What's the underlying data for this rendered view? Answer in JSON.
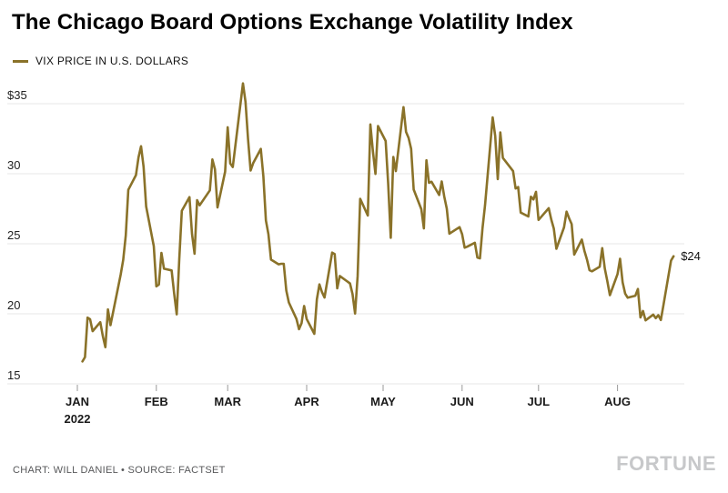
{
  "branding": {
    "logo": "FORTUNE"
  },
  "chart_data": {
    "type": "line",
    "title": "The Chicago Board Options Exchange Volatility Index",
    "legend": "VIX PRICE IN U.S. DOLLARS",
    "credit": "CHART: WILL DANIEL • SOURCE: FACTSET",
    "end_label": "$24",
    "line_color": "#8A7229",
    "grid": true,
    "legend_position": "top-left",
    "ylim": [
      15,
      37
    ],
    "y_ticks": [
      {
        "v": 35,
        "label": "$35"
      },
      {
        "v": 30,
        "label": "30"
      },
      {
        "v": 25,
        "label": "25"
      },
      {
        "v": 20,
        "label": "20"
      },
      {
        "v": 15,
        "label": "15"
      }
    ],
    "x_ticks": [
      {
        "month": 1,
        "label": "JAN",
        "sub": "2022"
      },
      {
        "month": 2,
        "label": "FEB"
      },
      {
        "month": 3,
        "label": "MAR"
      },
      {
        "month": 4,
        "label": "APR"
      },
      {
        "month": 5,
        "label": "MAY"
      },
      {
        "month": 6,
        "label": "JUN"
      },
      {
        "month": 7,
        "label": "JUL"
      },
      {
        "month": 8,
        "label": "AUG"
      }
    ],
    "series": [
      {
        "name": "VIX PRICE IN U.S. DOLLARS",
        "points": [
          [
            "01-03",
            16.6
          ],
          [
            "01-04",
            16.91
          ],
          [
            "01-05",
            19.73
          ],
          [
            "01-06",
            19.61
          ],
          [
            "01-07",
            18.76
          ],
          [
            "01-10",
            19.4
          ],
          [
            "01-11",
            18.41
          ],
          [
            "01-12",
            17.62
          ],
          [
            "01-13",
            20.31
          ],
          [
            "01-14",
            19.19
          ],
          [
            "01-18",
            22.79
          ],
          [
            "01-19",
            23.85
          ],
          [
            "01-20",
            25.59
          ],
          [
            "01-21",
            28.85
          ],
          [
            "01-24",
            29.9
          ],
          [
            "01-25",
            31.16
          ],
          [
            "01-26",
            31.96
          ],
          [
            "01-27",
            30.49
          ],
          [
            "01-28",
            27.66
          ],
          [
            "01-31",
            24.83
          ],
          [
            "02-01",
            21.96
          ],
          [
            "02-02",
            22.09
          ],
          [
            "02-03",
            24.35
          ],
          [
            "02-04",
            23.22
          ],
          [
            "02-07",
            23.1
          ],
          [
            "02-08",
            21.44
          ],
          [
            "02-09",
            19.96
          ],
          [
            "02-10",
            23.91
          ],
          [
            "02-11",
            27.36
          ],
          [
            "02-14",
            28.33
          ],
          [
            "02-15",
            25.7
          ],
          [
            "02-16",
            24.29
          ],
          [
            "02-17",
            28.11
          ],
          [
            "02-18",
            27.75
          ],
          [
            "02-22",
            28.81
          ],
          [
            "02-23",
            31.02
          ],
          [
            "02-24",
            30.32
          ],
          [
            "02-25",
            27.59
          ],
          [
            "02-28",
            30.15
          ],
          [
            "03-01",
            33.32
          ],
          [
            "03-02",
            30.74
          ],
          [
            "03-03",
            30.48
          ],
          [
            "03-04",
            31.98
          ],
          [
            "03-07",
            36.45
          ],
          [
            "03-08",
            35.13
          ],
          [
            "03-09",
            32.45
          ],
          [
            "03-10",
            30.23
          ],
          [
            "03-11",
            30.75
          ],
          [
            "03-14",
            31.77
          ],
          [
            "03-15",
            29.83
          ],
          [
            "03-16",
            26.67
          ],
          [
            "03-17",
            25.67
          ],
          [
            "03-18",
            23.87
          ],
          [
            "03-21",
            23.53
          ],
          [
            "03-22",
            23.57
          ],
          [
            "03-23",
            23.57
          ],
          [
            "03-24",
            21.67
          ],
          [
            "03-25",
            20.81
          ],
          [
            "03-28",
            19.63
          ],
          [
            "03-29",
            18.9
          ],
          [
            "03-30",
            19.33
          ],
          [
            "03-31",
            20.56
          ],
          [
            "04-01",
            19.63
          ],
          [
            "04-04",
            18.57
          ],
          [
            "04-05",
            21.03
          ],
          [
            "04-06",
            22.1
          ],
          [
            "04-07",
            21.55
          ],
          [
            "04-08",
            21.16
          ],
          [
            "04-11",
            24.37
          ],
          [
            "04-12",
            24.26
          ],
          [
            "04-13",
            21.82
          ],
          [
            "04-14",
            22.7
          ],
          [
            "04-18",
            22.17
          ],
          [
            "04-19",
            21.41
          ],
          [
            "04-20",
            20.02
          ],
          [
            "04-21",
            22.68
          ],
          [
            "04-22",
            28.21
          ],
          [
            "04-25",
            27.02
          ],
          [
            "04-26",
            33.52
          ],
          [
            "04-27",
            31.6
          ],
          [
            "04-28",
            29.99
          ],
          [
            "04-29",
            33.4
          ],
          [
            "05-02",
            32.34
          ],
          [
            "05-03",
            29.25
          ],
          [
            "05-04",
            25.42
          ],
          [
            "05-05",
            31.2
          ],
          [
            "05-06",
            30.19
          ],
          [
            "05-09",
            34.75
          ],
          [
            "05-10",
            32.99
          ],
          [
            "05-11",
            32.56
          ],
          [
            "05-12",
            31.77
          ],
          [
            "05-13",
            28.87
          ],
          [
            "05-16",
            27.47
          ],
          [
            "05-17",
            26.1
          ],
          [
            "05-18",
            30.96
          ],
          [
            "05-19",
            29.35
          ],
          [
            "05-20",
            29.43
          ],
          [
            "05-23",
            28.48
          ],
          [
            "05-24",
            29.45
          ],
          [
            "05-25",
            28.37
          ],
          [
            "05-26",
            27.5
          ],
          [
            "05-27",
            25.72
          ],
          [
            "05-31",
            26.19
          ],
          [
            "06-01",
            25.69
          ],
          [
            "06-02",
            24.72
          ],
          [
            "06-03",
            24.79
          ],
          [
            "06-06",
            25.07
          ],
          [
            "06-07",
            24.02
          ],
          [
            "06-08",
            23.96
          ],
          [
            "06-09",
            26.09
          ],
          [
            "06-10",
            27.75
          ],
          [
            "06-13",
            34.02
          ],
          [
            "06-14",
            32.69
          ],
          [
            "06-15",
            29.62
          ],
          [
            "06-16",
            32.95
          ],
          [
            "06-17",
            31.13
          ],
          [
            "06-21",
            30.19
          ],
          [
            "06-22",
            28.95
          ],
          [
            "06-23",
            29.05
          ],
          [
            "06-24",
            27.23
          ],
          [
            "06-27",
            26.95
          ],
          [
            "06-28",
            28.36
          ],
          [
            "06-29",
            28.16
          ],
          [
            "06-30",
            28.71
          ],
          [
            "07-01",
            26.7
          ],
          [
            "07-05",
            27.54
          ],
          [
            "07-06",
            26.73
          ],
          [
            "07-07",
            26.08
          ],
          [
            "07-08",
            24.64
          ],
          [
            "07-11",
            26.17
          ],
          [
            "07-12",
            27.29
          ],
          [
            "07-13",
            26.82
          ],
          [
            "07-14",
            26.4
          ],
          [
            "07-15",
            24.23
          ],
          [
            "07-18",
            25.3
          ],
          [
            "07-19",
            24.5
          ],
          [
            "07-20",
            23.88
          ],
          [
            "07-21",
            23.11
          ],
          [
            "07-22",
            23.03
          ],
          [
            "07-25",
            23.36
          ],
          [
            "07-26",
            24.69
          ],
          [
            "07-27",
            23.24
          ],
          [
            "07-28",
            22.33
          ],
          [
            "07-29",
            21.33
          ],
          [
            "08-01",
            22.84
          ],
          [
            "08-02",
            23.93
          ],
          [
            "08-03",
            22.25
          ],
          [
            "08-04",
            21.44
          ],
          [
            "08-05",
            21.15
          ],
          [
            "08-08",
            21.29
          ],
          [
            "08-09",
            21.77
          ],
          [
            "08-10",
            19.74
          ],
          [
            "08-11",
            20.2
          ],
          [
            "08-12",
            19.53
          ],
          [
            "08-15",
            19.94
          ],
          [
            "08-16",
            19.69
          ],
          [
            "08-17",
            19.9
          ],
          [
            "08-18",
            19.56
          ],
          [
            "08-19",
            20.6
          ],
          [
            "08-22",
            23.8
          ],
          [
            "08-23",
            24.11
          ]
        ]
      }
    ]
  }
}
